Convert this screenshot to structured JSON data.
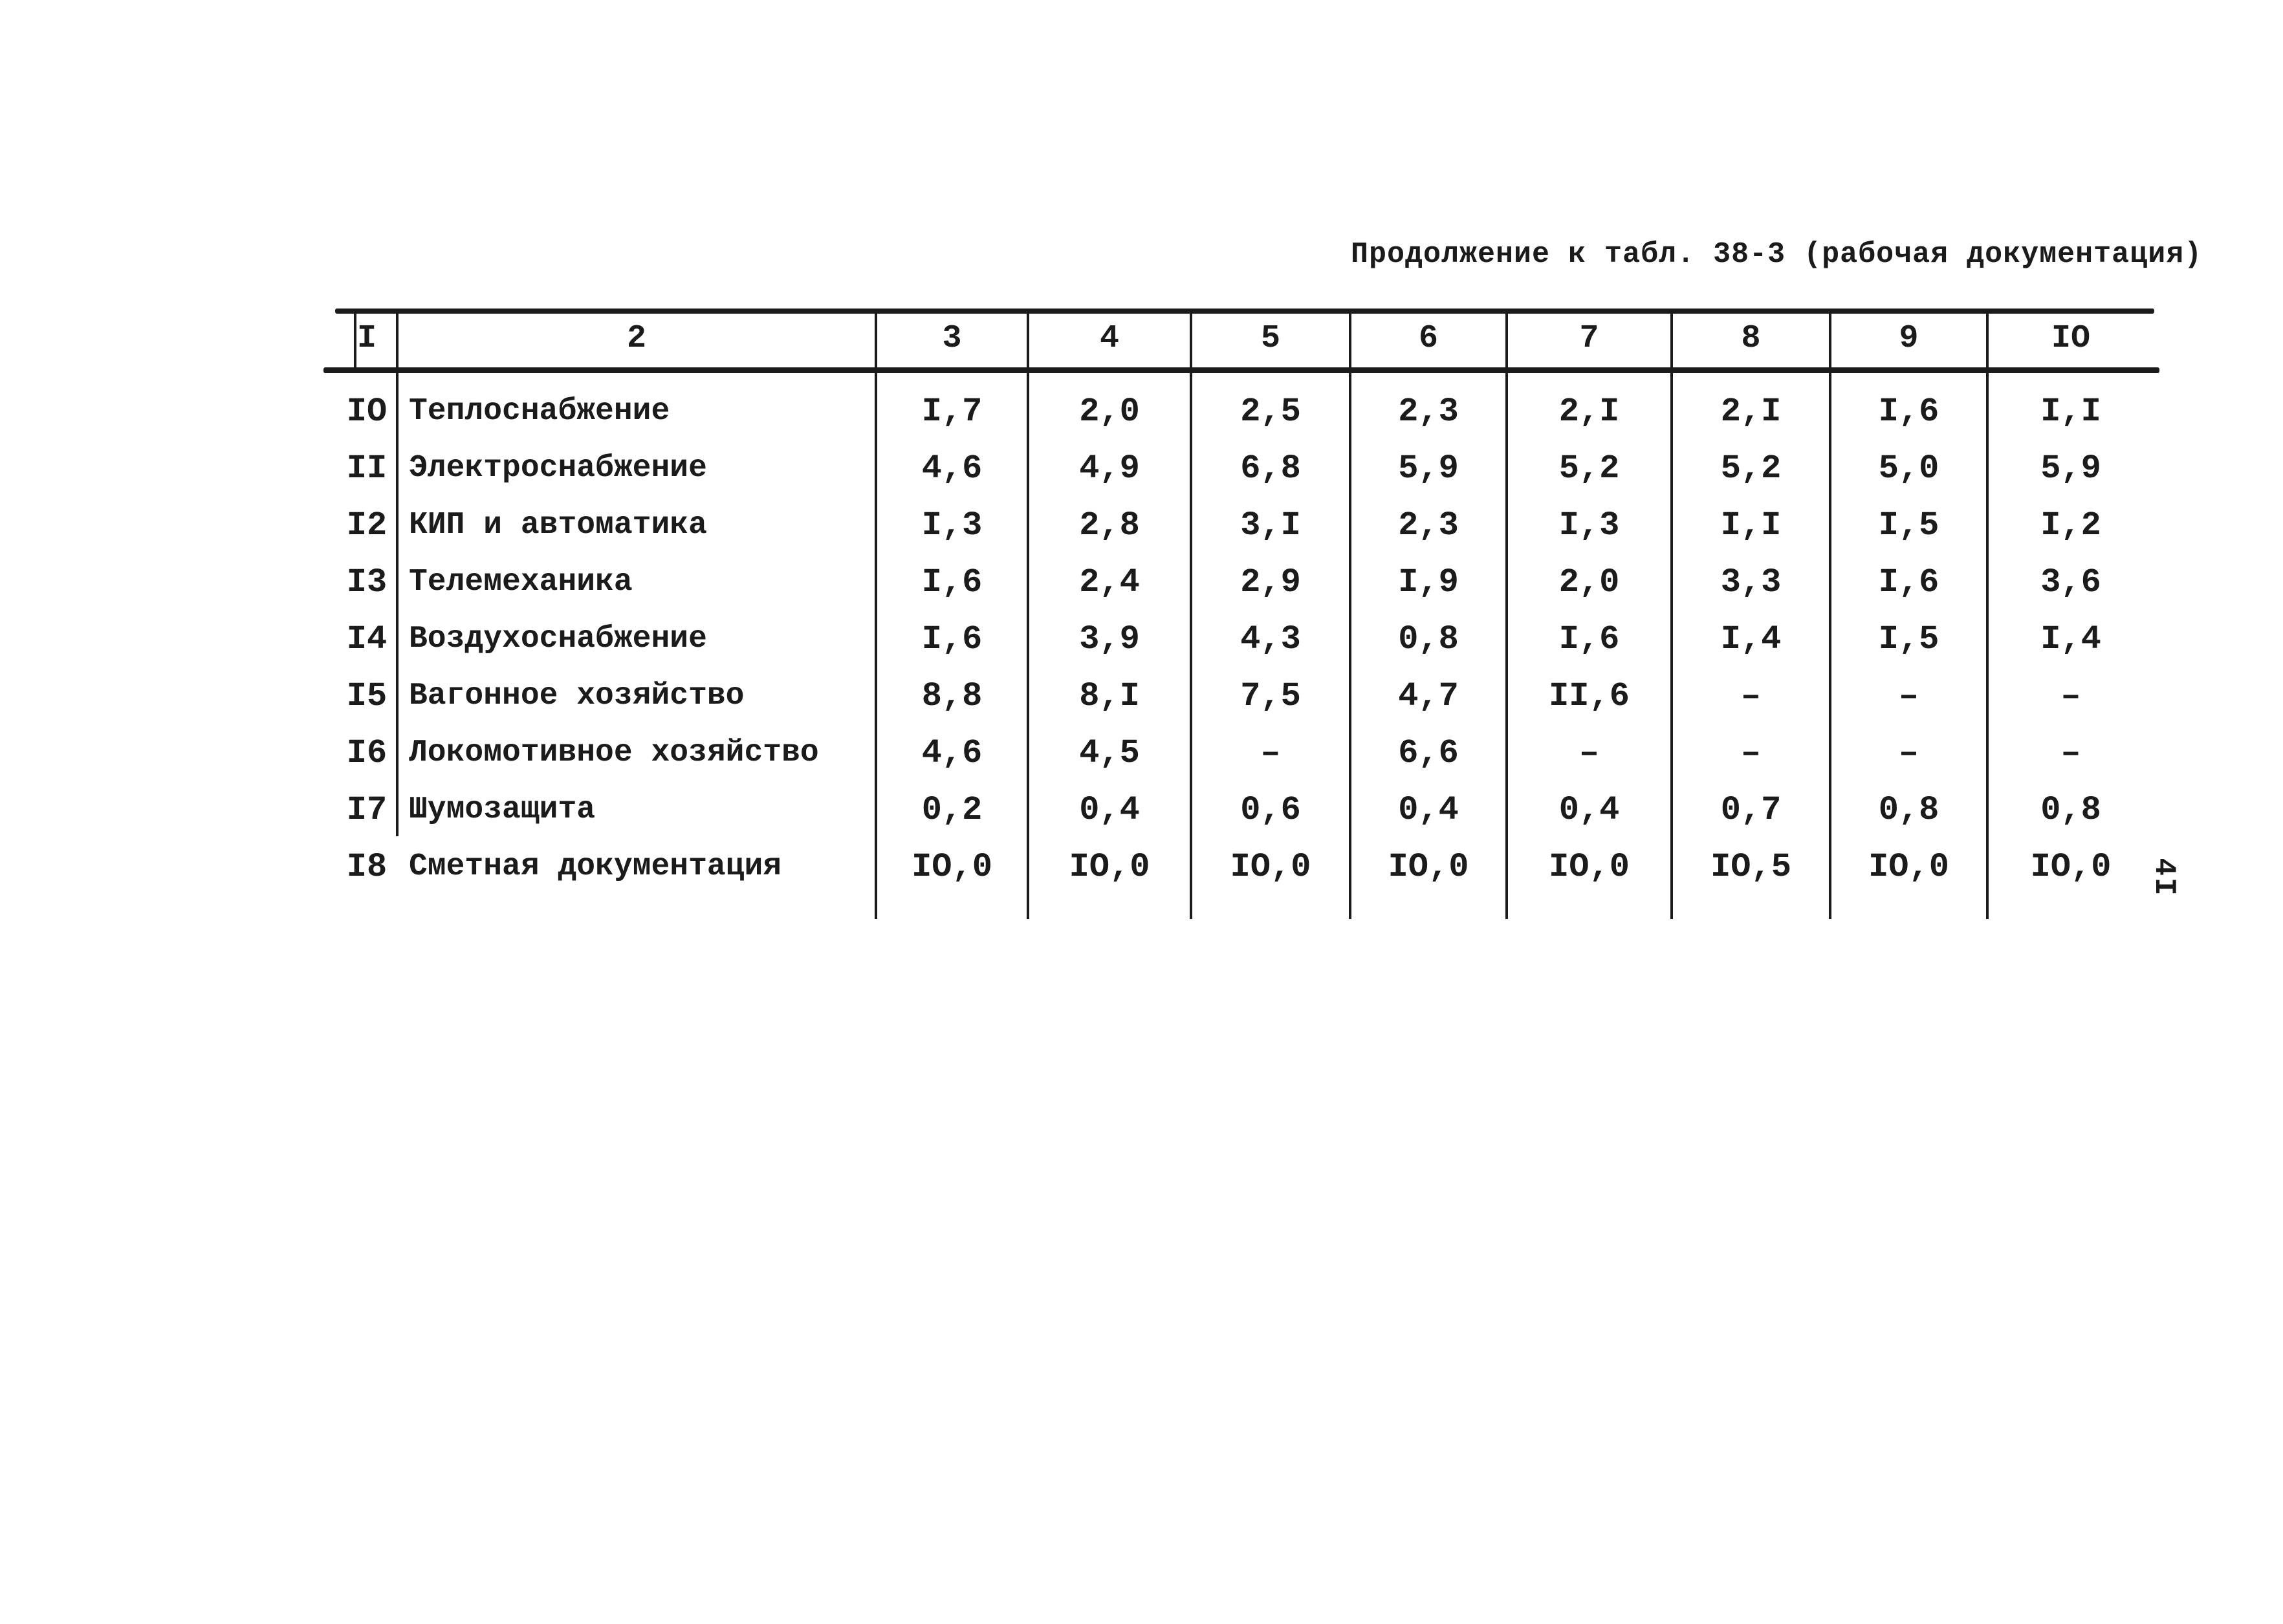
{
  "page": {
    "title": "Продолжение к табл. 38-3 (рабочая документация)",
    "page_number": "4I"
  },
  "table": {
    "header": [
      "I",
      "2",
      "3",
      "4",
      "5",
      "6",
      "7",
      "8",
      "9",
      "IO"
    ],
    "rows": [
      {
        "num": "IO",
        "label": "Теплоснабжение",
        "values": [
          "I,7",
          "2,0",
          "2,5",
          "2,3",
          "2,I",
          "2,I",
          "I,6",
          "I,I"
        ]
      },
      {
        "num": "II",
        "label": "Электроснабжение",
        "values": [
          "4,6",
          "4,9",
          "6,8",
          "5,9",
          "5,2",
          "5,2",
          "5,0",
          "5,9"
        ]
      },
      {
        "num": "I2",
        "label": "КИП и автоматика",
        "values": [
          "I,3",
          "2,8",
          "3,I",
          "2,3",
          "I,3",
          "I,I",
          "I,5",
          "I,2"
        ]
      },
      {
        "num": "I3",
        "label": "Телемеханика",
        "values": [
          "I,6",
          "2,4",
          "2,9",
          "I,9",
          "2,0",
          "3,3",
          "I,6",
          "3,6"
        ]
      },
      {
        "num": "I4",
        "label": "Воздухоснабжение",
        "values": [
          "I,6",
          "3,9",
          "4,3",
          "0,8",
          "I,6",
          "I,4",
          "I,5",
          "I,4"
        ]
      },
      {
        "num": "I5",
        "label": "Вагонное хозяйство",
        "values": [
          "8,8",
          "8,I",
          "7,5",
          "4,7",
          "II,6",
          "–",
          "–",
          "–"
        ]
      },
      {
        "num": "I6",
        "label": "Локомотивное хозяйство",
        "values": [
          "4,6",
          "4,5",
          "–",
          "6,6",
          "–",
          "–",
          "–",
          "–"
        ]
      },
      {
        "num": "I7",
        "label": "Шумозащита",
        "values": [
          "0,2",
          "0,4",
          "0,6",
          "0,4",
          "0,4",
          "0,7",
          "0,8",
          "0,8"
        ]
      },
      {
        "num": "I8",
        "label": "Сметная документация",
        "values": [
          "IO,0",
          "IO,0",
          "IO,0",
          "IO,0",
          "IO,0",
          "IO,5",
          "IO,0",
          "IO,0"
        ]
      }
    ]
  }
}
